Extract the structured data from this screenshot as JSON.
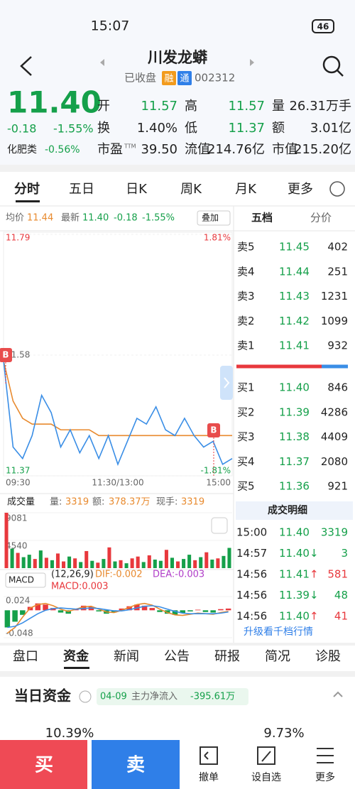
{
  "status_bar": {
    "time": "15:07",
    "battery": "46"
  },
  "header": {
    "title": "川发龙蟒",
    "status": "已收盘",
    "badges": [
      "融",
      "通"
    ],
    "code": "002312"
  },
  "quote": {
    "price": "11.40",
    "change": "-0.18",
    "change_pct": "-1.55%",
    "fields": [
      {
        "label": "开",
        "value": "11.57"
      },
      {
        "label": "高",
        "value": "11.57"
      },
      {
        "label": "量",
        "value": "26.31万手"
      },
      {
        "label": "换",
        "value": "1.40%"
      },
      {
        "label": "低",
        "value": "11.37"
      },
      {
        "label": "额",
        "value": "3.01亿"
      },
      {
        "label": "市盈",
        "sup": "TTM",
        "value": "39.50"
      },
      {
        "label": "流值",
        "value": "214.76亿"
      },
      {
        "label": "市值",
        "value": "215.20亿"
      }
    ],
    "sector": {
      "name": "化肥类",
      "change": "-0.56%"
    }
  },
  "tabs": [
    "分时",
    "五日",
    "日K",
    "周K",
    "月K",
    "更多"
  ],
  "intraday": {
    "avg_label": "均价",
    "avg": "11.44",
    "latest_label": "最新",
    "latest": "11.40",
    "change": "-0.18",
    "change_pct": "-1.55%",
    "overlay": "叠加",
    "ylim": [
      11.37,
      11.79
    ],
    "yticks": [
      11.79,
      11.58,
      11.37
    ],
    "pct_labels": [
      "1.81%",
      "-1.81%"
    ],
    "xlabels": [
      "09:30",
      "11:30/13:00",
      "15:00"
    ],
    "markers": [
      "B",
      "B"
    ],
    "price_color": "#3a8ee6",
    "avg_color": "#e88a2e",
    "price": [
      11.57,
      11.42,
      11.4,
      11.44,
      11.51,
      11.48,
      11.42,
      11.45,
      11.41,
      11.44,
      11.4,
      11.44,
      11.39,
      11.43,
      11.47,
      11.46,
      11.49,
      11.45,
      11.44,
      11.47,
      11.44,
      11.42,
      11.43,
      11.39,
      11.4
    ],
    "avg_line": [
      11.57,
      11.5,
      11.47,
      11.46,
      11.46,
      11.46,
      11.45,
      11.45,
      11.45,
      11.45,
      11.44,
      11.44,
      11.44,
      11.44,
      11.44,
      11.44,
      11.44,
      11.44,
      11.44,
      11.44,
      11.44,
      11.44,
      11.44,
      11.44,
      11.44
    ]
  },
  "order_book": {
    "tabs": [
      "五档",
      "分价"
    ],
    "asks": [
      {
        "label": "卖5",
        "price": "11.45",
        "volume": "402"
      },
      {
        "label": "卖4",
        "price": "11.44",
        "volume": "251"
      },
      {
        "label": "卖3",
        "price": "11.43",
        "volume": "1231"
      },
      {
        "label": "卖2",
        "price": "11.42",
        "volume": "1099"
      },
      {
        "label": "卖1",
        "price": "11.41",
        "volume": "932"
      }
    ],
    "bids": [
      {
        "label": "买1",
        "price": "11.40",
        "volume": "846"
      },
      {
        "label": "买2",
        "price": "11.39",
        "volume": "4286"
      },
      {
        "label": "买3",
        "price": "11.38",
        "volume": "4409"
      },
      {
        "label": "买4",
        "price": "11.37",
        "volume": "2080"
      },
      {
        "label": "买5",
        "price": "11.36",
        "volume": "921"
      }
    ]
  },
  "volume": {
    "label": "成交量",
    "stats": [
      {
        "label": "量:",
        "value": "3319"
      },
      {
        "label": "额:",
        "value": "378.37万"
      },
      {
        "label": "现手:",
        "value": "3319"
      }
    ],
    "ylim": [
      0,
      9081
    ],
    "yticks": [
      9081,
      4540
    ],
    "values": [
      9081,
      3200,
      2500,
      1800,
      2200,
      1500,
      2900,
      1700,
      1300,
      2400,
      1100,
      1900,
      1600,
      1000,
      2800,
      1200,
      900,
      1500,
      3400,
      1100,
      1300,
      800,
      1600,
      1900,
      1000,
      2100,
      1400,
      1200,
      3000,
      1700,
      1100,
      1500,
      2200,
      1300,
      1800,
      2600,
      1400,
      1600,
      2000,
      3319
    ],
    "colors": [
      "#e8383d",
      "#15a04a",
      "#e8383d",
      "#15a04a",
      "#15a04a",
      "#e8383d",
      "#15a04a",
      "#e8383d",
      "#15a04a",
      "#e8383d",
      "#e8383d",
      "#15a04a",
      "#e8383d",
      "#15a04a",
      "#e8383d",
      "#15a04a",
      "#e8383d",
      "#15a04a",
      "#e8383d",
      "#15a04a",
      "#e8383d",
      "#15a04a",
      "#e8383d",
      "#e8383d",
      "#15a04a",
      "#e8383d",
      "#15a04a",
      "#15a04a",
      "#e8383d",
      "#15a04a",
      "#e8383d",
      "#15a04a",
      "#15a04a",
      "#e8383d",
      "#15a04a",
      "#e8383d",
      "#15a04a",
      "#e8383d",
      "#15a04a",
      "#15a04a"
    ]
  },
  "macd": {
    "label": "MACD",
    "params": "(12,26,9)",
    "dif": "DIF:-0.002",
    "dea": "DEA:-0.003",
    "macd": "MACD:0.003",
    "ylim": [
      -0.048,
      0.024
    ],
    "yticks": [
      0.024,
      -0.048
    ],
    "up_color": "#e8383d",
    "down_color": "#15a04a",
    "dif_color": "#e88a2e",
    "dea_color": "#3a8ee6",
    "bars": [
      -0.03,
      -0.02,
      -0.008,
      0.006,
      0.012,
      0.01,
      0.004,
      -0.004,
      -0.006,
      0.002,
      0.008,
      0.006,
      -0.002,
      -0.006,
      -0.004,
      0.003,
      0.007,
      0.01,
      0.008,
      0.004,
      -0.003,
      -0.006,
      -0.008,
      -0.005,
      -0.002,
      0.001,
      -0.003,
      -0.004,
      0.002,
      0.003
    ],
    "dif_line": [
      -0.04,
      -0.03,
      -0.012,
      0.004,
      0.01,
      0.012,
      0.008,
      0.002,
      -0.002,
      0.002,
      0.006,
      0.007,
      0.002,
      -0.003,
      -0.004,
      0.0,
      0.005,
      0.01,
      0.012,
      0.009,
      0.002,
      -0.004,
      -0.008,
      -0.009,
      -0.007,
      -0.005,
      -0.006,
      -0.007,
      -0.004,
      -0.002
    ],
    "dea_line": [
      -0.03,
      -0.028,
      -0.022,
      -0.014,
      -0.006,
      0.0,
      0.003,
      0.004,
      0.003,
      0.002,
      0.003,
      0.004,
      0.003,
      0.001,
      -0.001,
      -0.001,
      0.001,
      0.004,
      0.007,
      0.008,
      0.006,
      0.002,
      -0.002,
      -0.005,
      -0.006,
      -0.006,
      -0.006,
      -0.006,
      -0.005,
      -0.003
    ]
  },
  "trades": {
    "title": "成交明细",
    "rows": [
      {
        "time": "15:00",
        "price": "11.40",
        "volume": "3319"
      },
      {
        "time": "14:57",
        "price": "11.40",
        "arrow": "↓",
        "volume": "3"
      },
      {
        "time": "14:56",
        "price": "11.41",
        "arrow": "↑",
        "volume": "581"
      },
      {
        "time": "14:56",
        "price": "11.39",
        "arrow": "↓",
        "volume": "48"
      },
      {
        "time": "14:56",
        "price": "11.40",
        "arrow": "↑",
        "volume": "41"
      }
    ],
    "more": "升级看千档行情"
  },
  "detail_tabs": [
    "盘口",
    "资金",
    "新闻",
    "公告",
    "研报",
    "简况",
    "诊股"
  ],
  "funds": {
    "title": "当日资金",
    "date": "04-09",
    "label": "主力净流入",
    "value": "-395.61万",
    "left_pct": "10.39%",
    "right_pct": "9.73%"
  },
  "actions": {
    "buy": "买",
    "sell": "卖",
    "items": [
      "撤单",
      "设自选",
      "更多"
    ]
  }
}
